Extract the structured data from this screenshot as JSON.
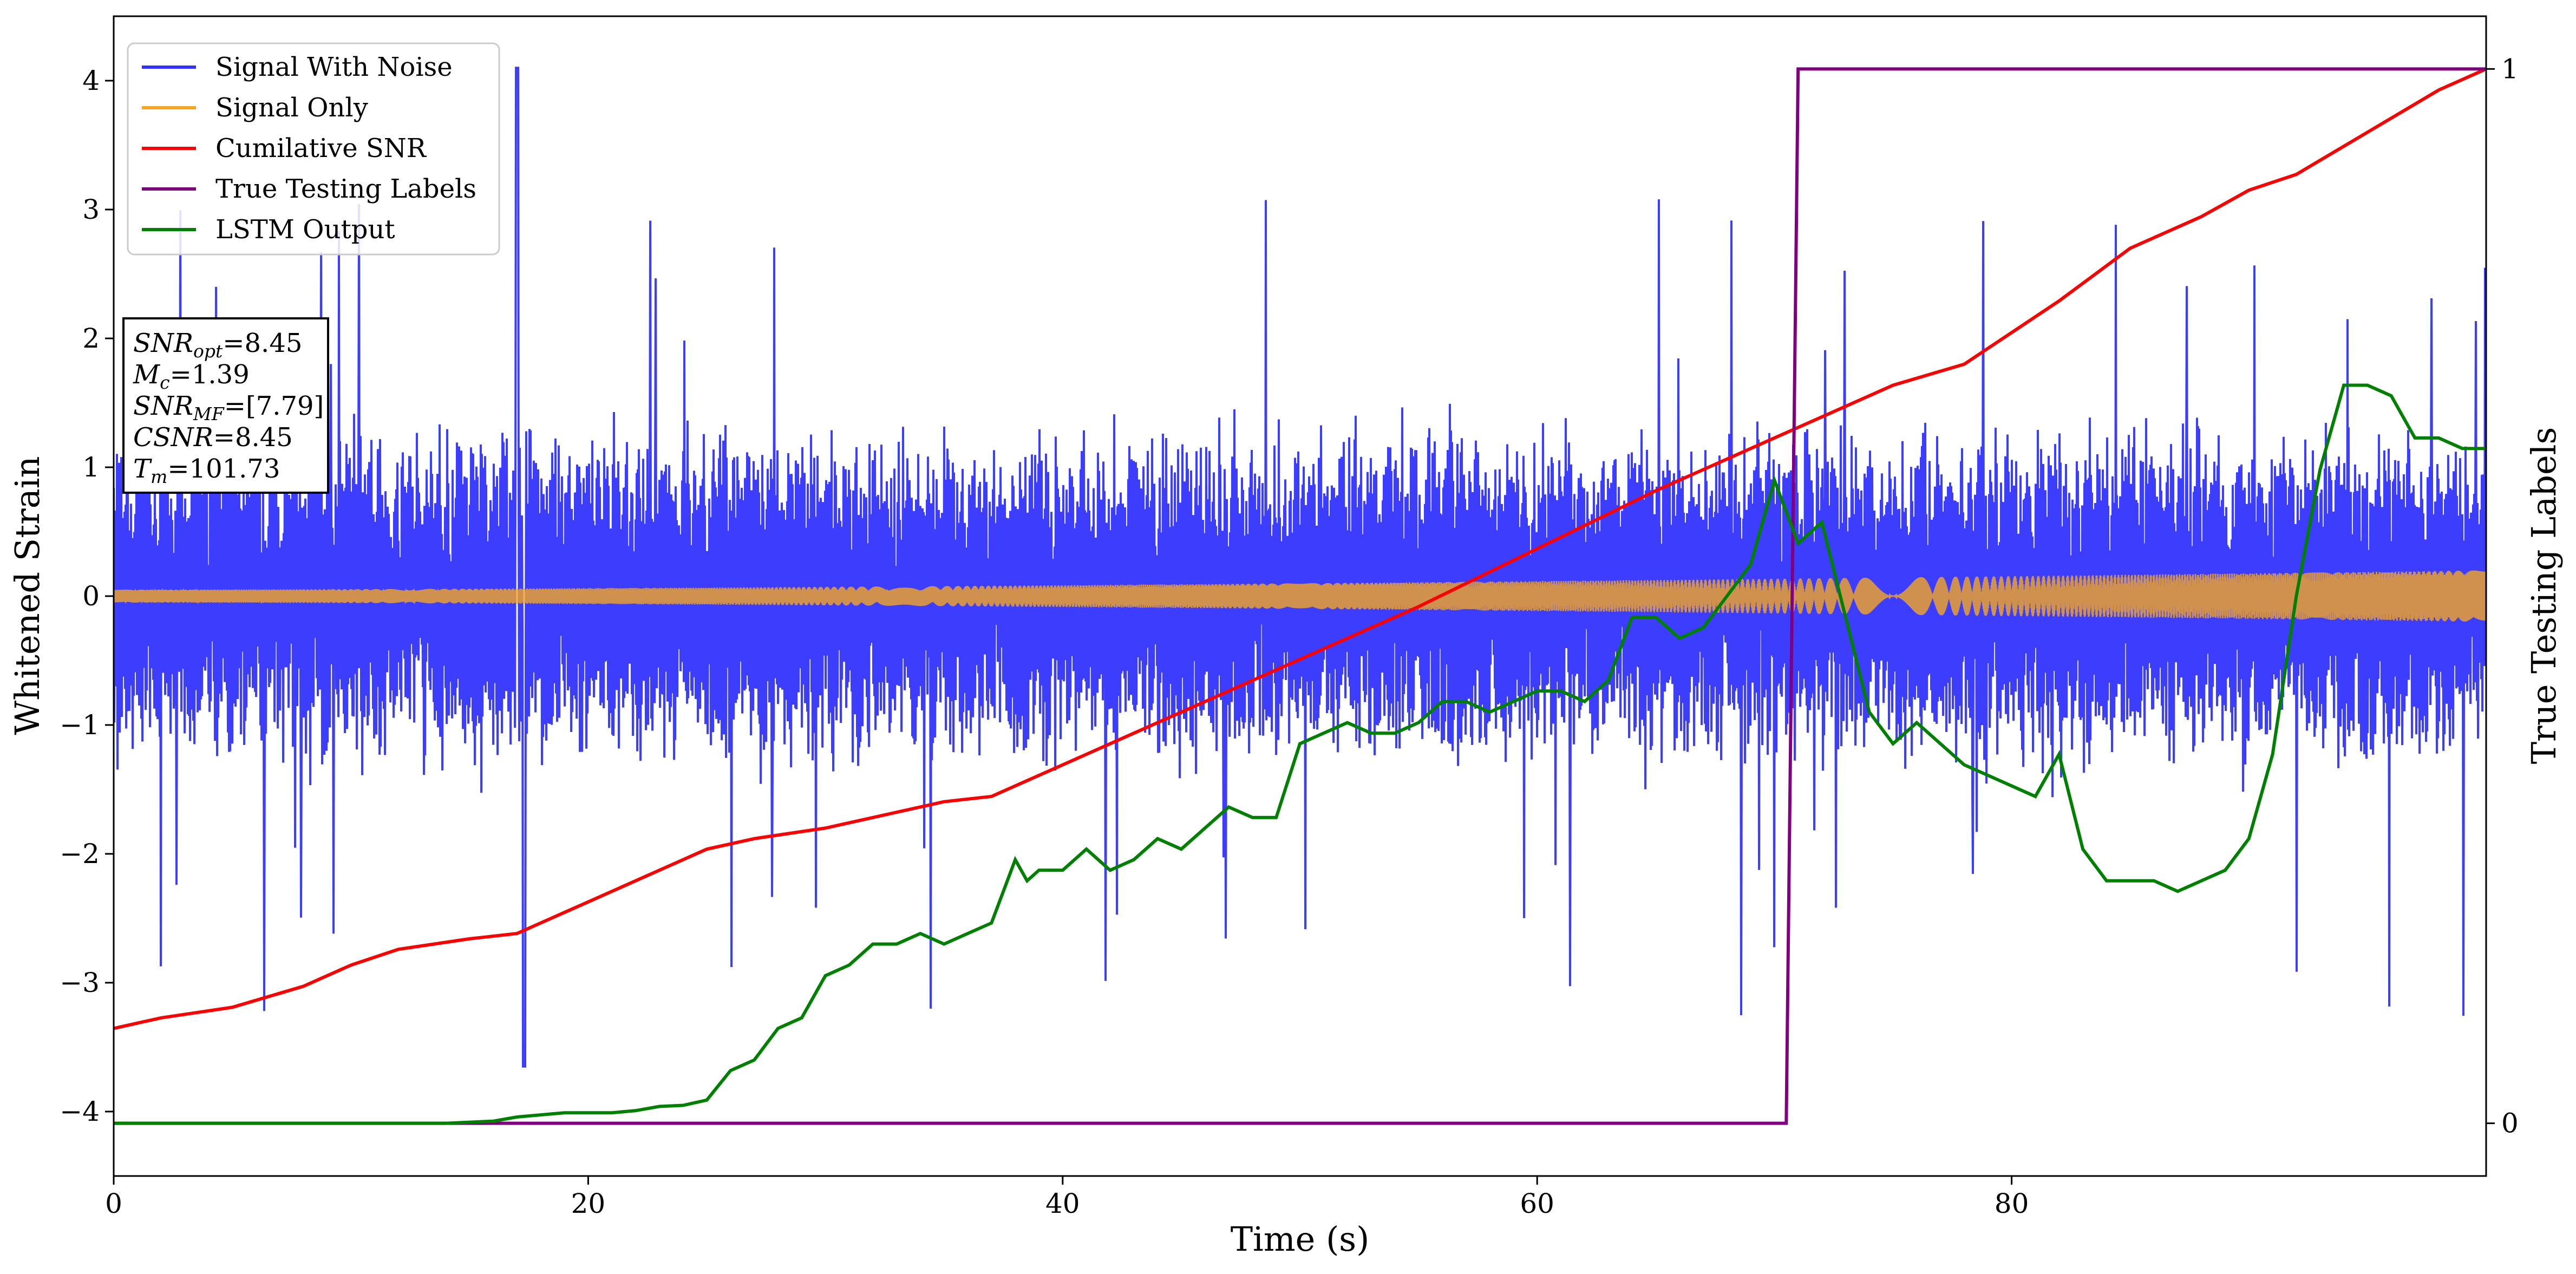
{
  "chart_data": {
    "type": "line",
    "xlabel": "Time (s)",
    "ylabel": "Whitened Strain",
    "ylabel_right": "True Testing Labels",
    "xlim": [
      0,
      100
    ],
    "ylim": [
      -4.5,
      4.5
    ],
    "ylim_right": [
      -0.05,
      1.05
    ],
    "grid": false,
    "legend_position": "top-left",
    "x_ticks": [
      0,
      20,
      40,
      60,
      80
    ],
    "x_tick_labels": [
      "0",
      "20",
      "40",
      "60",
      "80"
    ],
    "y_ticks": [
      -4,
      -3,
      -2,
      -1,
      0,
      1,
      2,
      3,
      4
    ],
    "y_tick_labels": [
      "−4",
      "−3",
      "−2",
      "−1",
      "0",
      "1",
      "2",
      "3",
      "4"
    ],
    "y_right_ticks": [
      0,
      1
    ],
    "y_right_tick_labels": [
      "0",
      "1"
    ],
    "series": [
      {
        "name": "Signal With Noise",
        "axis": "left",
        "color": "#3333ff",
        "style": "dense noise",
        "envelope_core": 1.1,
        "spike_peak": 4.1,
        "spike_trough": -3.65
      },
      {
        "name": "Signal Only",
        "axis": "left",
        "color": "#f5a623",
        "style": "chirp",
        "amplitude_start": 0.05,
        "amplitude_end": 0.2
      },
      {
        "name": "Cumilative SNR",
        "axis": "right",
        "color": "#ff0000",
        "x": [
          0,
          2,
          5,
          8,
          10,
          12,
          15,
          17,
          20,
          22,
          25,
          27,
          30,
          32,
          35,
          37,
          40,
          45,
          50,
          55,
          60,
          65,
          70,
          72,
          75,
          78,
          80,
          82,
          85,
          88,
          90,
          92,
          95,
          98,
          100
        ],
        "y": [
          0.09,
          0.1,
          0.11,
          0.13,
          0.15,
          0.165,
          0.175,
          0.18,
          0.21,
          0.23,
          0.26,
          0.27,
          0.28,
          0.29,
          0.305,
          0.31,
          0.34,
          0.39,
          0.44,
          0.49,
          0.545,
          0.6,
          0.65,
          0.67,
          0.7,
          0.72,
          0.75,
          0.78,
          0.83,
          0.86,
          0.885,
          0.9,
          0.94,
          0.98,
          1.0
        ]
      },
      {
        "name": "True Testing Labels",
        "axis": "right",
        "color": "#800080",
        "x": [
          0,
          70.5,
          71,
          100
        ],
        "y": [
          0,
          0,
          1,
          1
        ]
      },
      {
        "name": "LSTM Output",
        "axis": "right",
        "color": "#008000",
        "x": [
          0,
          14,
          16,
          17,
          18,
          19,
          20,
          21,
          22,
          23,
          24,
          25,
          26,
          27,
          28,
          29,
          30,
          31,
          32,
          33,
          34,
          35,
          36,
          37,
          38,
          38.5,
          39,
          40,
          41,
          42,
          43,
          44,
          45,
          46,
          47,
          48,
          49,
          50,
          51,
          52,
          53,
          54,
          55,
          56,
          57,
          58,
          59,
          60,
          61,
          62,
          63,
          64,
          65,
          66,
          67,
          68,
          69,
          70,
          71,
          72,
          73,
          74,
          75,
          76,
          77,
          78,
          79,
          80,
          81,
          82,
          83,
          84,
          85,
          86,
          87,
          88,
          89,
          90,
          91,
          92,
          93,
          94,
          95,
          96,
          97,
          98,
          99,
          100
        ],
        "y": [
          0,
          0,
          0.002,
          0.006,
          0.008,
          0.01,
          0.01,
          0.01,
          0.012,
          0.016,
          0.017,
          0.022,
          0.05,
          0.06,
          0.09,
          0.1,
          0.14,
          0.15,
          0.17,
          0.17,
          0.18,
          0.17,
          0.18,
          0.19,
          0.25,
          0.23,
          0.24,
          0.24,
          0.26,
          0.24,
          0.25,
          0.27,
          0.26,
          0.28,
          0.3,
          0.29,
          0.29,
          0.36,
          0.37,
          0.38,
          0.37,
          0.37,
          0.38,
          0.4,
          0.4,
          0.39,
          0.4,
          0.41,
          0.41,
          0.4,
          0.42,
          0.48,
          0.48,
          0.46,
          0.47,
          0.5,
          0.53,
          0.61,
          0.55,
          0.57,
          0.48,
          0.39,
          0.36,
          0.38,
          0.36,
          0.34,
          0.33,
          0.32,
          0.31,
          0.35,
          0.26,
          0.23,
          0.23,
          0.23,
          0.22,
          0.23,
          0.24,
          0.27,
          0.35,
          0.5,
          0.62,
          0.7,
          0.7,
          0.69,
          0.65,
          0.65,
          0.64,
          0.64
        ]
      }
    ]
  },
  "annotation": {
    "snr_opt_base": "SNR",
    "snr_opt_sub": "opt",
    "snr_opt_value": "=8.45",
    "mc_base": "M",
    "mc_sub": "c",
    "mc_value": "=1.39",
    "snr_mf_base": "SNR",
    "snr_mf_sub": "MF",
    "snr_mf_value": "=[7.79]",
    "csnr_base": "CSNR",
    "csnr_value": "=8.45",
    "tm_base": "T",
    "tm_sub": "m",
    "tm_value": "=101.73"
  }
}
